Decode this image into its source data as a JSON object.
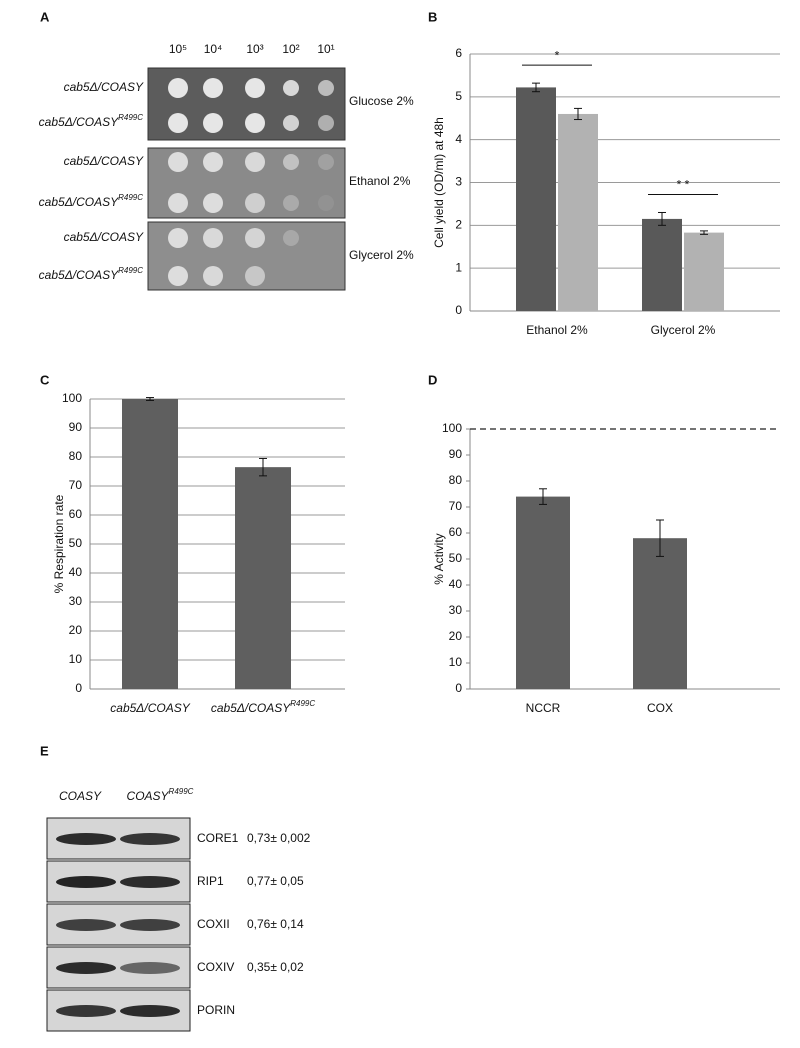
{
  "panel_labels": [
    "A",
    "B",
    "C",
    "D",
    "E"
  ],
  "panel_a": {
    "dilutions": [
      "10⁵",
      "10⁴",
      "10³",
      "10²",
      "10¹"
    ],
    "strains": [
      {
        "text": "cab5Δ/COASY"
      },
      {
        "text": "cab5Δ/COASY",
        "sup": "R499C"
      }
    ],
    "media": [
      "Glucose 2%",
      "Ethanol 2%",
      "Glycerol 2%"
    ]
  },
  "chart_data": [
    {
      "type": "bar",
      "ylabel": "Cell yield (OD/ml) at 48h",
      "categories": [
        "Ethanol 2%",
        "Glycerol 2%"
      ],
      "series": [
        {
          "color": "#595959",
          "values": [
            5.22,
            2.15
          ],
          "errors": [
            0.1,
            0.15
          ]
        },
        {
          "color": "#b2b2b2",
          "values": [
            4.6,
            1.83
          ],
          "errors": [
            0.13,
            0.04
          ]
        }
      ],
      "ylim": [
        0,
        6
      ],
      "yticks": [
        0,
        1,
        2,
        3,
        4,
        5,
        6
      ],
      "grid": true,
      "annotations": [
        "*",
        "* *"
      ]
    },
    {
      "type": "bar",
      "ylabel": "% Respiration rate",
      "categories": [
        {
          "text": "cab5Δ/COASY"
        },
        {
          "text": "cab5Δ/COASY",
          "sup": "R499C"
        }
      ],
      "series": [
        {
          "color": "#5f5f5f",
          "values": [
            100,
            76.5
          ],
          "errors": [
            0.5,
            3
          ]
        }
      ],
      "ylim": [
        0,
        100
      ],
      "yticks": [
        0,
        10,
        20,
        30,
        40,
        50,
        60,
        70,
        80,
        90,
        100
      ],
      "grid": true
    },
    {
      "type": "bar",
      "ylabel": "% Activity",
      "categories": [
        "NCCR",
        "COX"
      ],
      "series": [
        {
          "color": "#5f5f5f",
          "values": [
            74,
            58
          ],
          "errors": [
            3,
            7
          ]
        }
      ],
      "ylim": [
        0,
        100
      ],
      "yticks": [
        0,
        10,
        20,
        30,
        40,
        50,
        60,
        70,
        80,
        90,
        100
      ],
      "grid": false,
      "reference_line": 100
    }
  ],
  "panel_e": {
    "lanes": [
      {
        "text": "COASY"
      },
      {
        "text": "COASY",
        "sup": "R499C"
      }
    ],
    "rows": [
      {
        "protein": "CORE1",
        "ratio": "0,73± 0,002"
      },
      {
        "protein": "RIP1",
        "ratio": "0,77± 0,05"
      },
      {
        "protein": "COXII",
        "ratio": "0,76± 0,14"
      },
      {
        "protein": "COXIV",
        "ratio": "0,35± 0,02"
      },
      {
        "protein": "PORIN"
      }
    ]
  }
}
